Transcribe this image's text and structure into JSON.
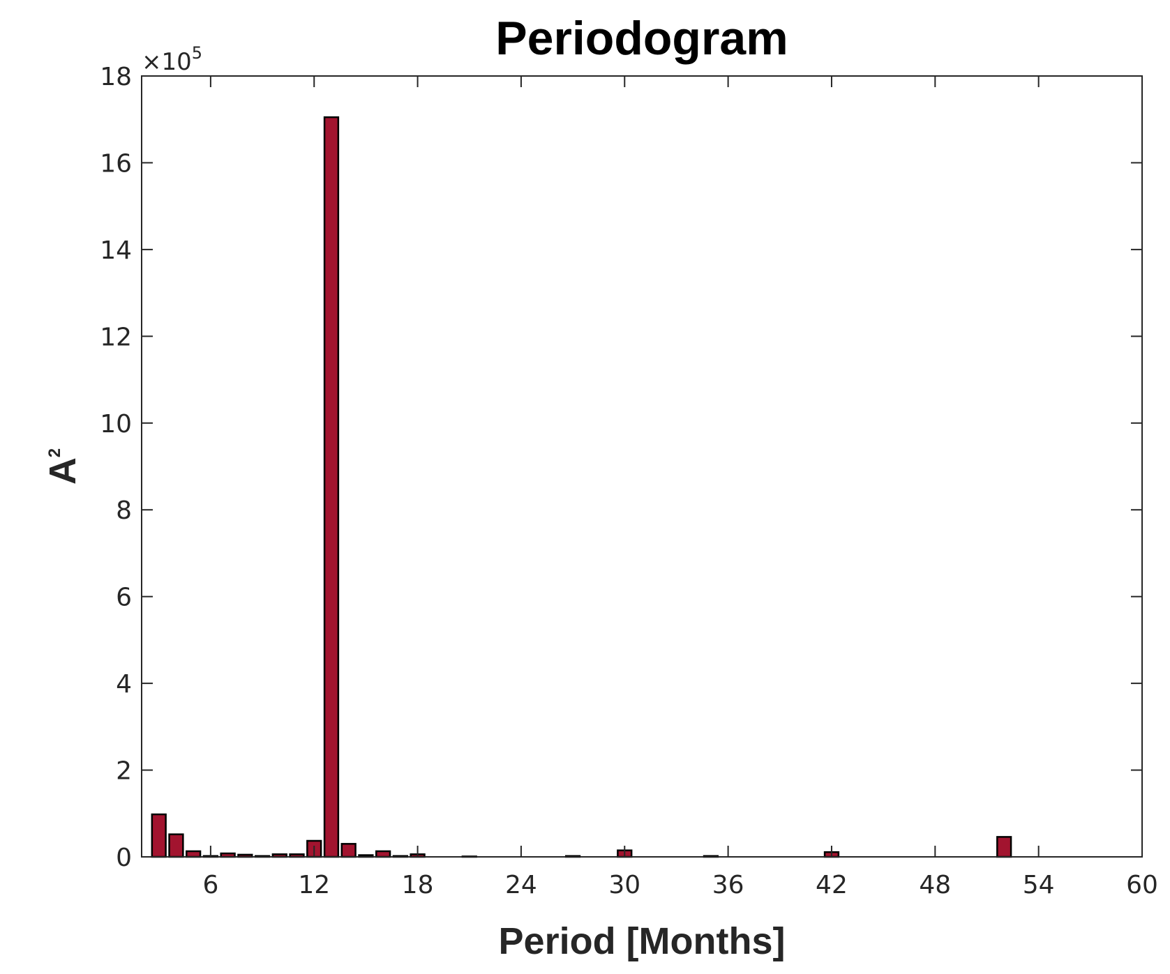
{
  "chart_data": {
    "type": "bar",
    "title": "Periodogram",
    "xlabel": "Period [Months]",
    "ylabel_base": "A",
    "ylabel_exponent": "2",
    "y_multiplier_base": "×10",
    "y_multiplier_exponent": "5",
    "xlim": [
      2,
      60
    ],
    "ylim": [
      0,
      18
    ],
    "xticks": [
      6,
      12,
      18,
      24,
      30,
      36,
      42,
      48,
      54,
      60
    ],
    "yticks": [
      0,
      2,
      4,
      6,
      8,
      10,
      12,
      14,
      16,
      18
    ],
    "bar_color": "#A2142F",
    "edge_color": "#000000",
    "grid": false,
    "bars": [
      {
        "x": 3,
        "y": 0.98
      },
      {
        "x": 4,
        "y": 0.52
      },
      {
        "x": 5,
        "y": 0.13
      },
      {
        "x": 6,
        "y": 0.02
      },
      {
        "x": 7,
        "y": 0.08
      },
      {
        "x": 8,
        "y": 0.05
      },
      {
        "x": 9,
        "y": 0.02
      },
      {
        "x": 10,
        "y": 0.06
      },
      {
        "x": 11,
        "y": 0.06
      },
      {
        "x": 12,
        "y": 0.37
      },
      {
        "x": 13,
        "y": 17.05
      },
      {
        "x": 14,
        "y": 0.3
      },
      {
        "x": 15,
        "y": 0.04
      },
      {
        "x": 16,
        "y": 0.13
      },
      {
        "x": 17,
        "y": 0.02
      },
      {
        "x": 18,
        "y": 0.06
      },
      {
        "x": 21,
        "y": 0.01
      },
      {
        "x": 27,
        "y": 0.02
      },
      {
        "x": 30,
        "y": 0.15
      },
      {
        "x": 35,
        "y": 0.02
      },
      {
        "x": 42,
        "y": 0.11
      },
      {
        "x": 52,
        "y": 0.46
      }
    ]
  }
}
